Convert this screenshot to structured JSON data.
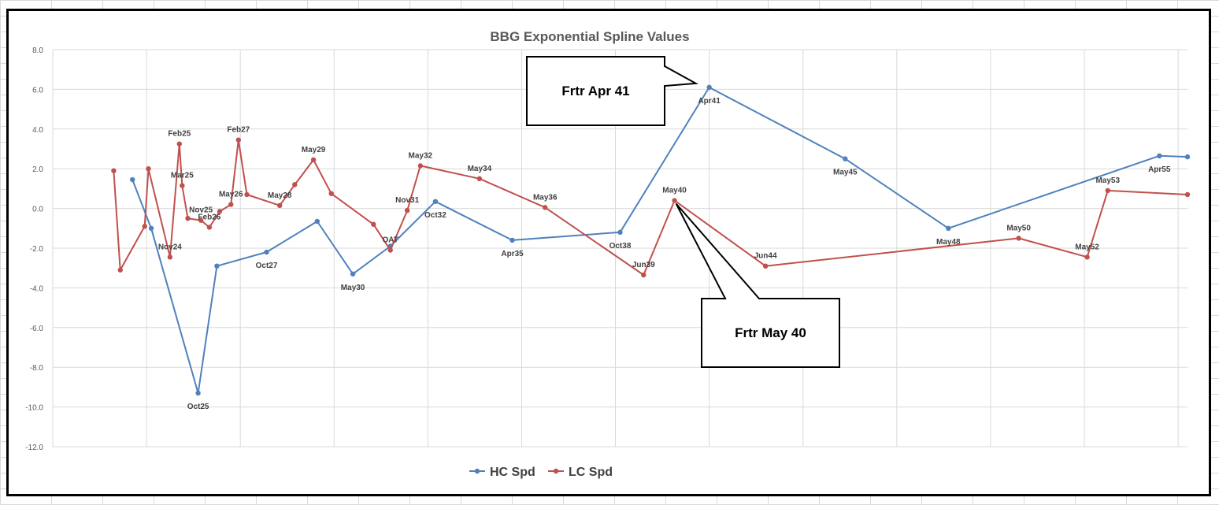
{
  "chart_data": {
    "type": "line",
    "title": "BBG Exponential Spline Values",
    "xlabel": "",
    "ylabel": "",
    "ylim": [
      -12,
      8
    ],
    "yticks": [
      "8.0",
      "6.0",
      "4.0",
      "2.0",
      "0.0",
      "-2.0",
      "-4.0",
      "-6.0",
      "-8.0",
      "-10.0",
      "-12.0"
    ],
    "x_axis_labels_shown": false,
    "grid": true,
    "legend_position": "bottom",
    "series": [
      {
        "name": "HC Spd",
        "color": "#4f81bd",
        "points": [
          {
            "x": 2023.85,
            "y": 1.45,
            "label": ""
          },
          {
            "x": 2024.05,
            "y": -1.0,
            "label": ""
          },
          {
            "x": 2024.55,
            "y": -9.3,
            "label": "Oct25"
          },
          {
            "x": 2024.75,
            "y": -2.9,
            "label": ""
          },
          {
            "x": 2025.28,
            "y": -2.2,
            "label": "Oct27"
          },
          {
            "x": 2025.82,
            "y": -0.65,
            "label": ""
          },
          {
            "x": 2026.2,
            "y": -3.3,
            "label": "May30"
          },
          {
            "x": 2026.6,
            "y": -1.9,
            "label": ""
          },
          {
            "x": 2027.08,
            "y": 0.35,
            "label": "Oct32"
          },
          {
            "x": 2027.9,
            "y": -1.6,
            "label": "Apr35"
          },
          {
            "x": 2029.05,
            "y": -1.2,
            "label": "Oct38"
          },
          {
            "x": 2030.0,
            "y": 6.1,
            "label": "Apr41"
          },
          {
            "x": 2031.45,
            "y": 2.5,
            "label": "May45"
          },
          {
            "x": 2032.55,
            "y": -1.0,
            "label": "May48"
          },
          {
            "x": 2034.8,
            "y": 2.65,
            "label": "Apr55"
          },
          {
            "x": 2035.1,
            "y": 2.6,
            "label": ""
          }
        ]
      },
      {
        "name": "LC Spd",
        "color": "#c0504d",
        "points": [
          {
            "x": 2023.65,
            "y": 1.9,
            "label": ""
          },
          {
            "x": 2023.72,
            "y": -3.1,
            "label": ""
          },
          {
            "x": 2023.98,
            "y": -0.9,
            "label": ""
          },
          {
            "x": 2024.02,
            "y": 2.0,
            "label": ""
          },
          {
            "x": 2024.25,
            "y": -2.45,
            "label": "Nov24"
          },
          {
            "x": 2024.35,
            "y": 3.25,
            "label": "Feb25"
          },
          {
            "x": 2024.38,
            "y": 1.15,
            "label": "Mar25"
          },
          {
            "x": 2024.44,
            "y": -0.5,
            "label": ""
          },
          {
            "x": 2024.58,
            "y": -0.6,
            "label": "Nov25"
          },
          {
            "x": 2024.67,
            "y": -0.95,
            "label": "Feb26"
          },
          {
            "x": 2024.78,
            "y": -0.15,
            "label": ""
          },
          {
            "x": 2024.9,
            "y": 0.2,
            "label": "May26"
          },
          {
            "x": 2024.98,
            "y": 3.45,
            "label": "Feb27"
          },
          {
            "x": 2025.07,
            "y": 0.7,
            "label": ""
          },
          {
            "x": 2025.42,
            "y": 0.15,
            "label": "May28"
          },
          {
            "x": 2025.58,
            "y": 1.2,
            "label": ""
          },
          {
            "x": 2025.78,
            "y": 2.45,
            "label": "May29"
          },
          {
            "x": 2025.97,
            "y": 0.75,
            "label": ""
          },
          {
            "x": 2026.42,
            "y": -0.8,
            "label": ""
          },
          {
            "x": 2026.6,
            "y": -2.1,
            "label": "OAT"
          },
          {
            "x": 2026.78,
            "y": -0.1,
            "label": "Nov31"
          },
          {
            "x": 2026.92,
            "y": 2.15,
            "label": "May32"
          },
          {
            "x": 2027.55,
            "y": 1.5,
            "label": "May34"
          },
          {
            "x": 2028.25,
            "y": 0.05,
            "label": "May36"
          },
          {
            "x": 2029.3,
            "y": -3.35,
            "label": "Jun39"
          },
          {
            "x": 2029.63,
            "y": 0.4,
            "label": "May40"
          },
          {
            "x": 2030.6,
            "y": -2.9,
            "label": "Jun44"
          },
          {
            "x": 2033.3,
            "y": -1.5,
            "label": "May50"
          },
          {
            "x": 2034.03,
            "y": -2.45,
            "label": "May52"
          },
          {
            "x": 2034.25,
            "y": 0.9,
            "label": "May53"
          },
          {
            "x": 2035.1,
            "y": 0.7,
            "label": ""
          }
        ]
      }
    ],
    "annotations": [
      {
        "text": "Frtr Apr 41",
        "target_series": 0,
        "target_point": 11
      },
      {
        "text": "Frtr May 40",
        "target_series": 1,
        "target_point": 25
      }
    ]
  }
}
